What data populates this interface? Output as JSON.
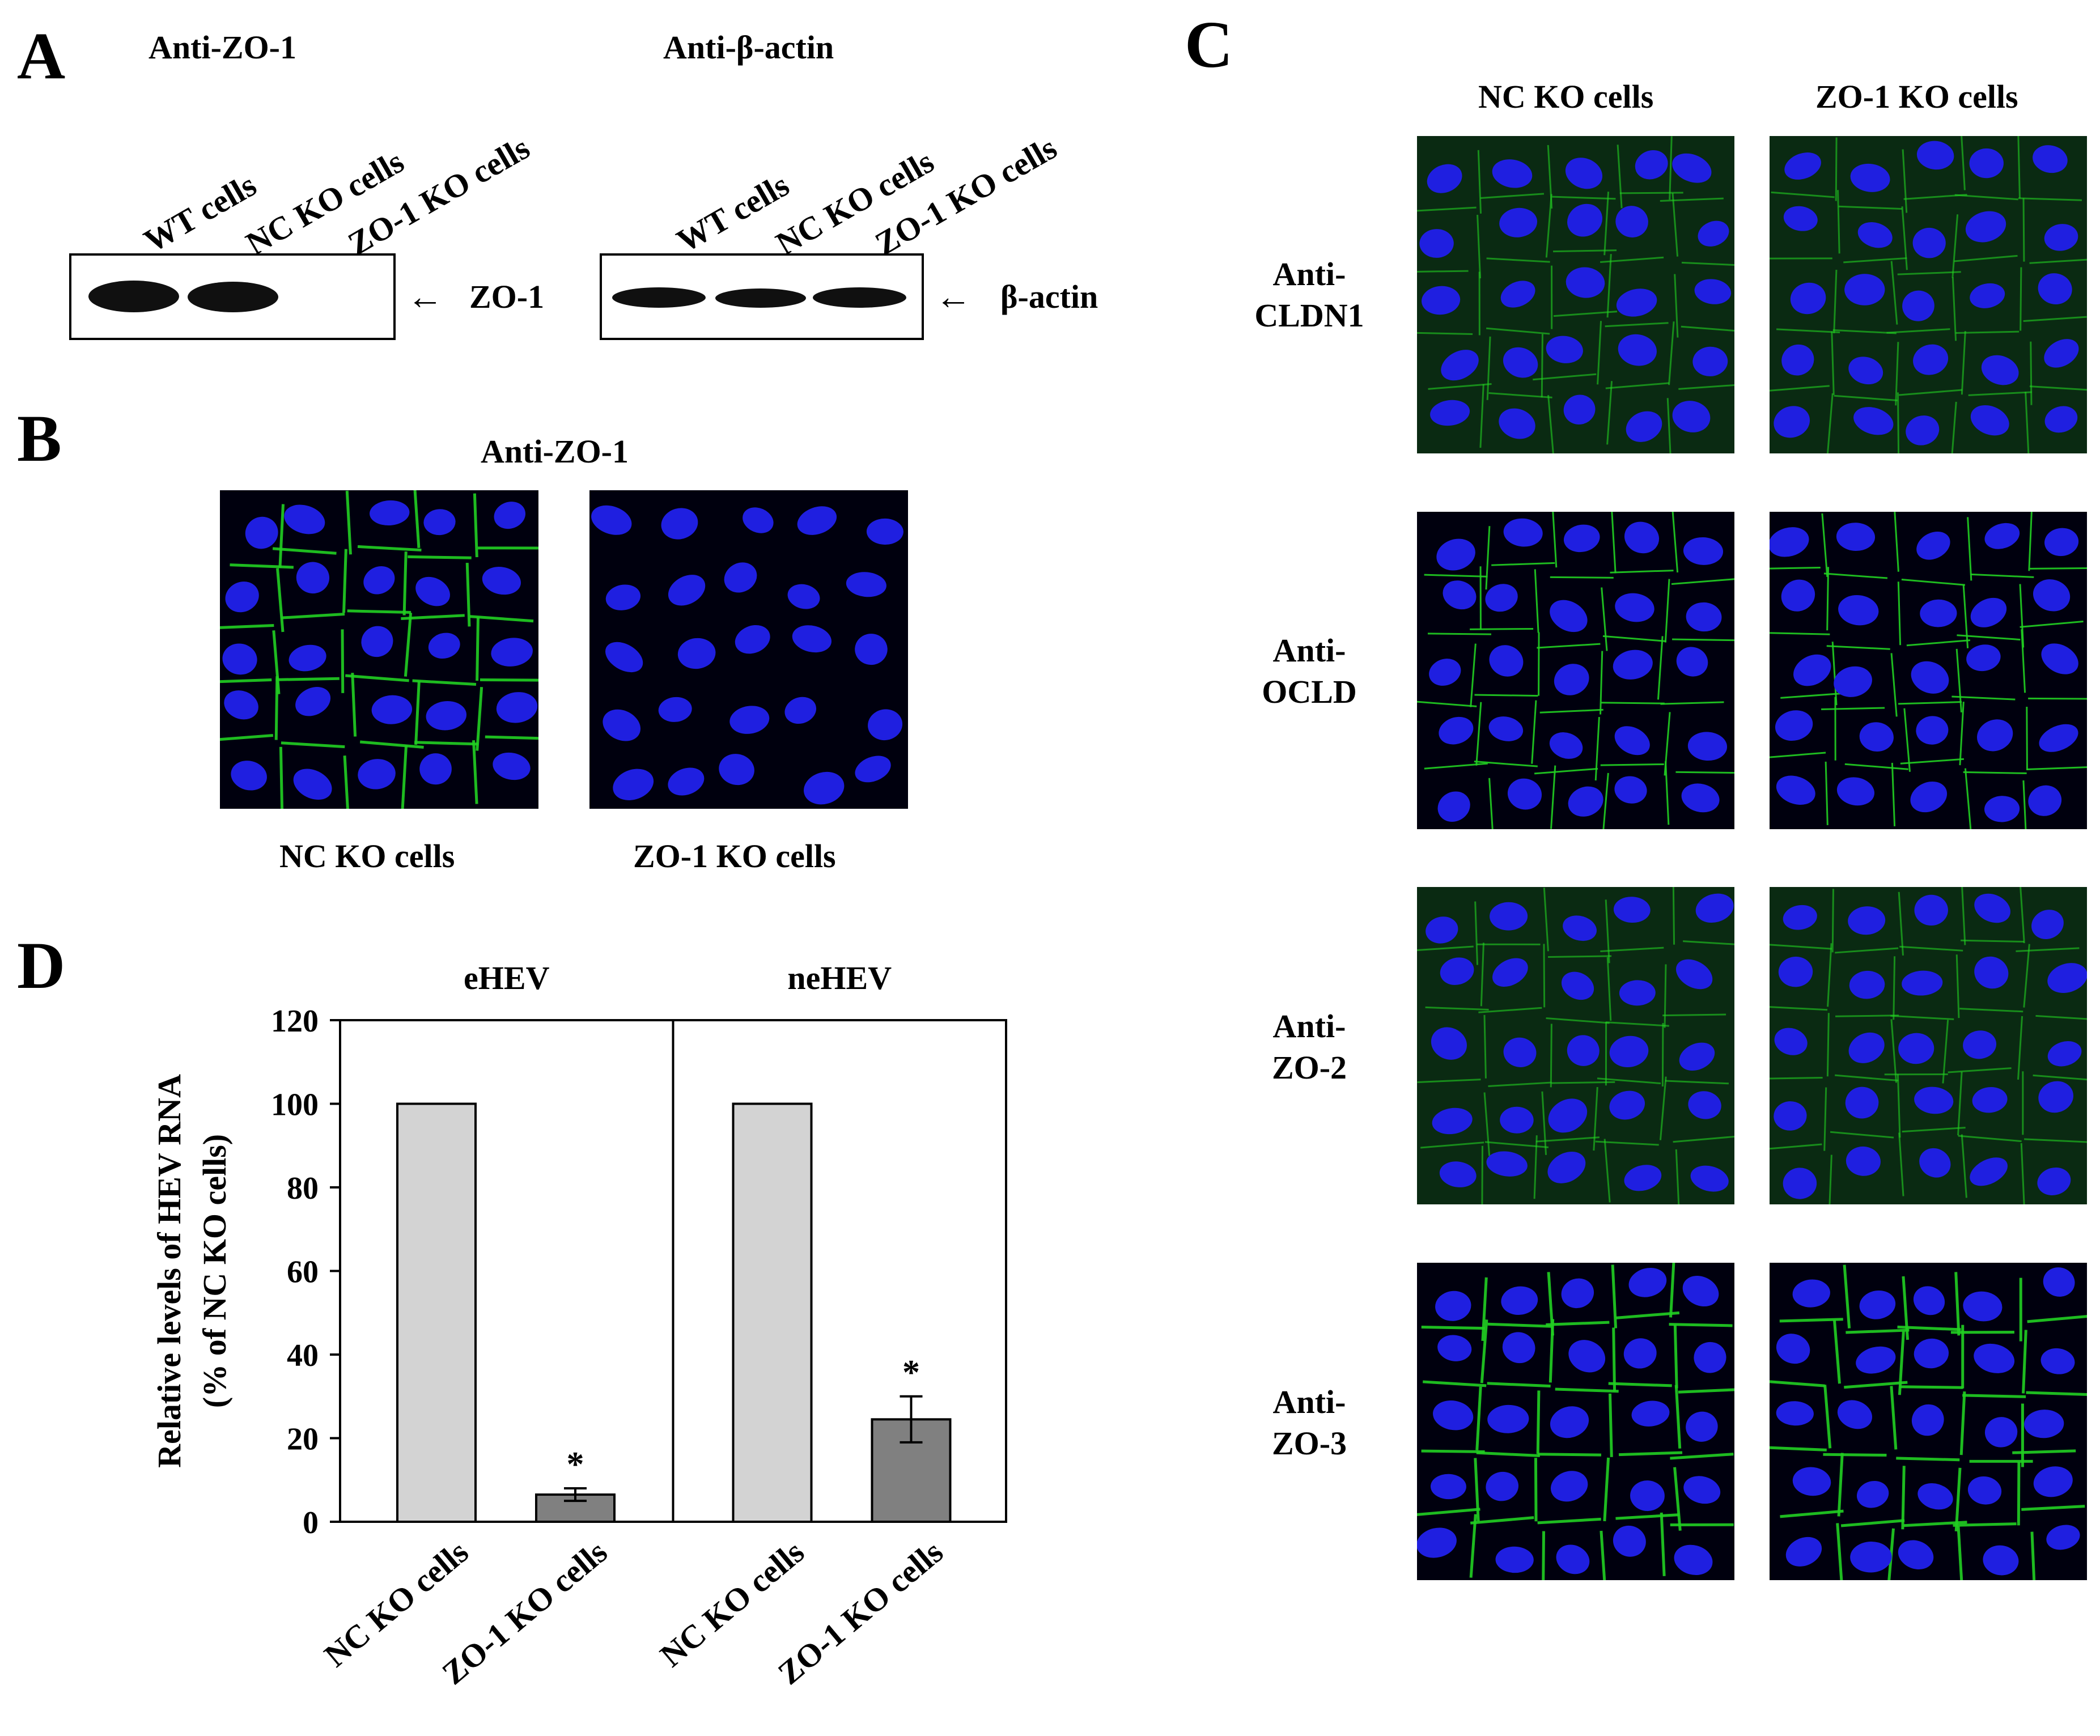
{
  "panels": {
    "A": "A",
    "B": "B",
    "C": "C",
    "D": "D"
  },
  "panel_a": {
    "blots": [
      {
        "title": "Anti-ZO-1",
        "lanes": [
          "WT cells",
          "NC KO cells",
          "ZO-1 KO cells"
        ],
        "band_present": [
          true,
          true,
          false
        ],
        "target_label": "ZO-1"
      },
      {
        "title": "Anti-β-actin",
        "lanes": [
          "WT cells",
          "NC KO cells",
          "ZO-1 KO cells"
        ],
        "band_present": [
          true,
          true,
          true
        ],
        "target_label": "β-actin"
      }
    ],
    "arrow_glyph": "←"
  },
  "panel_b": {
    "title": "Anti-ZO-1",
    "images": [
      "NC KO cells",
      "ZO-1 KO cells"
    ]
  },
  "panel_c": {
    "columns": [
      "NC KO cells",
      "ZO-1 KO cells"
    ],
    "rows": [
      {
        "line1": "Anti-",
        "line2": "CLDN1"
      },
      {
        "line1": "Anti-",
        "line2": "OCLD"
      },
      {
        "line1": "Anti-",
        "line2": "ZO-2"
      },
      {
        "line1": "Anti-",
        "line2": "ZO-3"
      }
    ]
  },
  "colors": {
    "nucleus": "#1f1fe0",
    "junction": "#22d022",
    "bar_nc": "#d3d3d3",
    "bar_zo1": "#808080"
  },
  "chart_data": {
    "type": "bar",
    "groups": [
      "eHEV",
      "neHEV"
    ],
    "categories": [
      "NC KO cells",
      "ZO-1 KO cells",
      "NC KO cells",
      "ZO-1 KO cells"
    ],
    "values": [
      100,
      6.5,
      100,
      24.5
    ],
    "errors": [
      0,
      1.5,
      0,
      5.5
    ],
    "significance": [
      "",
      "*",
      "",
      "*"
    ],
    "ylabel_line1": "Relative levels of HEV RNA",
    "ylabel_line2": "(% of NC KO cells)",
    "ylim": [
      0,
      120
    ],
    "yticks": [
      "0",
      "20",
      "40",
      "60",
      "80",
      "100",
      "120"
    ],
    "grid": false
  }
}
